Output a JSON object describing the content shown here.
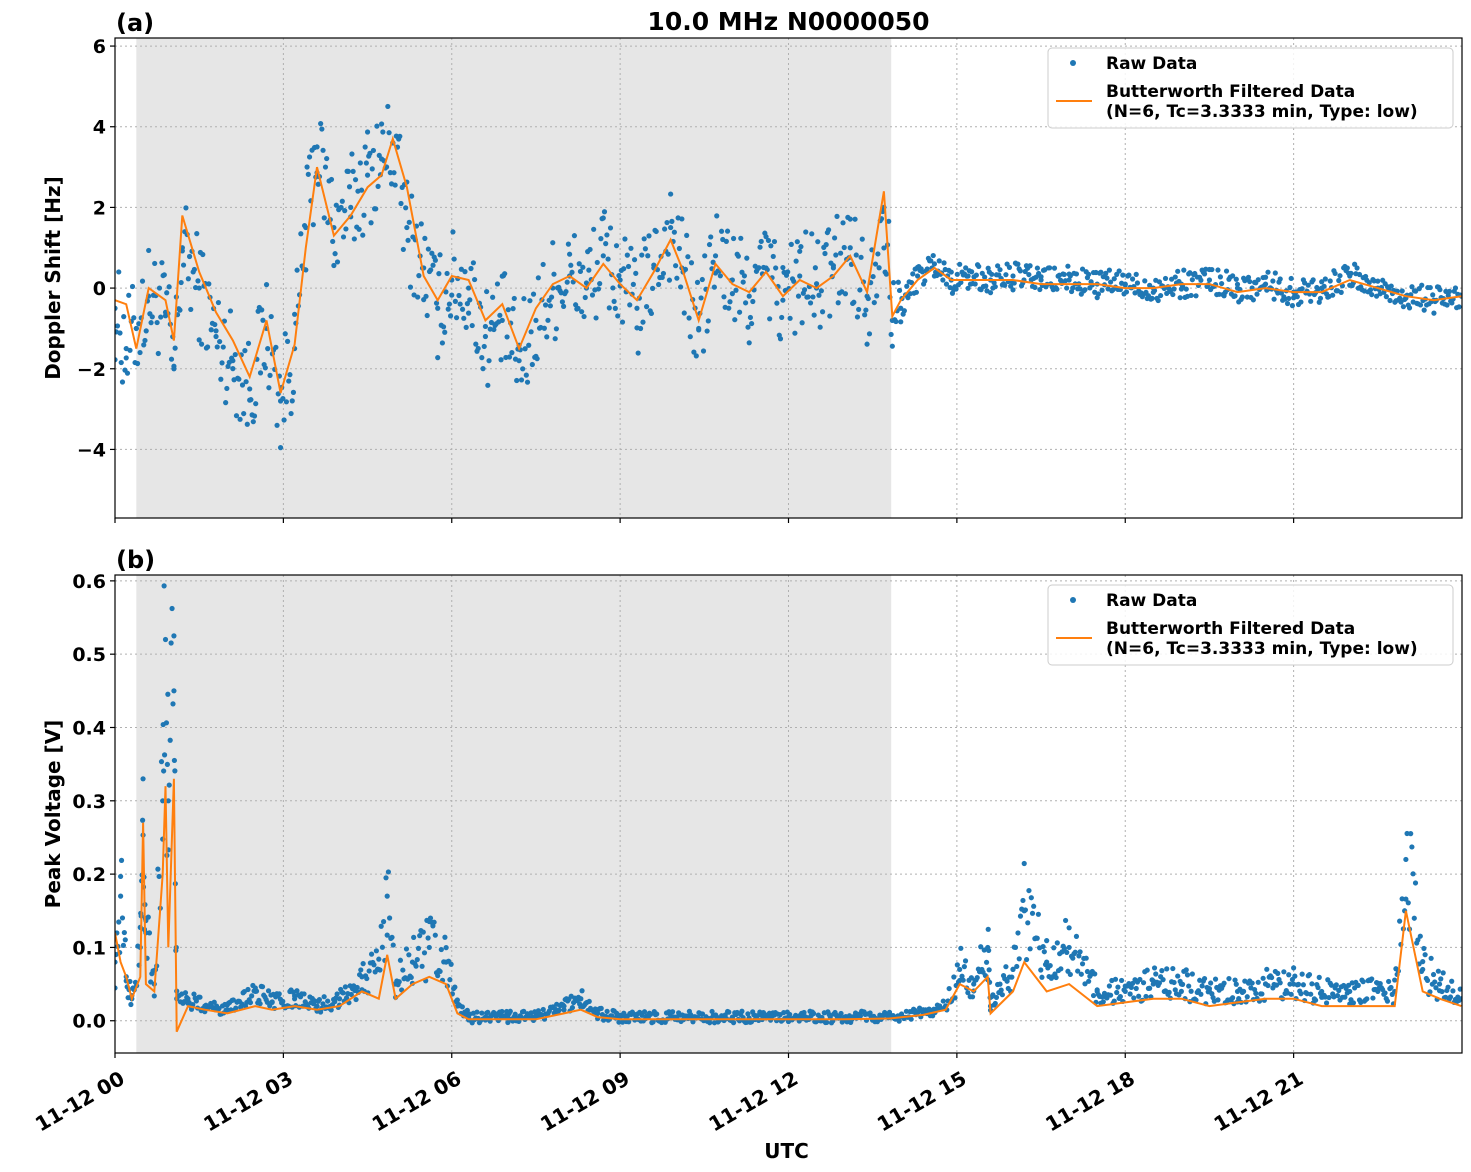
{
  "chart_data": [
    {
      "type": "scatter",
      "panel": "(a)",
      "title": "10.0 MHz N0000050",
      "xlabel": "",
      "ylabel": "Doppler Shift [Hz]",
      "ylim": [
        -5.7,
        6.2
      ],
      "yticks": [
        -4,
        -2,
        0,
        2,
        4,
        6
      ],
      "ytick_labels": [
        "−4",
        "−2",
        "0",
        "2",
        "4",
        "6"
      ],
      "xlim": [
        0,
        24
      ],
      "xticks": [
        0,
        3,
        6,
        9,
        12,
        15,
        18,
        21
      ],
      "shaded_interval": [
        0.38,
        13.83
      ],
      "grid": true,
      "legend_position": "top-right",
      "legend": [
        "Raw Data",
        "Butterworth Filtered Data",
        "(N=6, Tc=3.3333 min, Type: low)"
      ],
      "series": [
        {
          "name": "Raw Data",
          "kind": "points",
          "color": "#1f77b4",
          "x": [
            0.0,
            0.2,
            0.38,
            0.6,
            0.9,
            1.05,
            1.2,
            1.5,
            1.8,
            2.1,
            2.4,
            2.7,
            2.95,
            3.2,
            3.4,
            3.6,
            3.9,
            4.2,
            4.5,
            4.75,
            4.95,
            5.2,
            5.5,
            5.75,
            6.0,
            6.3,
            6.6,
            6.9,
            7.2,
            7.5,
            7.8,
            8.1,
            8.4,
            8.7,
            9.0,
            9.3,
            9.6,
            9.9,
            10.1,
            10.4,
            10.7,
            11.0,
            11.3,
            11.6,
            11.9,
            12.2,
            12.5,
            12.8,
            13.1,
            13.4,
            13.7,
            13.85,
            14.0,
            14.3,
            14.6,
            14.9,
            15.2,
            15.6,
            16.0,
            16.5,
            17.0,
            17.5,
            18.0,
            18.5,
            19.0,
            19.5,
            20.0,
            20.5,
            21.0,
            21.5,
            22.0,
            22.5,
            23.0,
            23.5,
            23.99
          ],
          "y": [
            -0.5,
            -1.5,
            -1.0,
            -0.2,
            -0.6,
            -2.0,
            1.0,
            0.0,
            -1.2,
            -1.8,
            -2.5,
            -1.0,
            -2.8,
            -1.5,
            1.5,
            3.5,
            1.5,
            2.0,
            2.8,
            3.2,
            3.6,
            1.5,
            0.5,
            -0.5,
            0.2,
            0.0,
            -1.2,
            -0.8,
            -1.8,
            -0.8,
            0.0,
            0.3,
            0.0,
            0.8,
            0.2,
            -0.5,
            0.5,
            1.5,
            0.5,
            -1.0,
            0.8,
            0.2,
            -0.2,
            0.5,
            -0.3,
            0.3,
            0.0,
            0.5,
            1.0,
            -0.2,
            2.0,
            -0.8,
            -0.5,
            0.3,
            0.6,
            0.2,
            0.3,
            0.2,
            0.3,
            0.2,
            0.2,
            0.1,
            0.1,
            0.0,
            0.1,
            0.2,
            0.0,
            0.1,
            -0.1,
            0.0,
            0.3,
            0.0,
            -0.2,
            -0.3,
            -0.2
          ]
        },
        {
          "name": "Butterworth Filtered Data",
          "kind": "line",
          "color": "#ff7f0e",
          "x": [
            0.0,
            0.2,
            0.38,
            0.6,
            0.9,
            1.05,
            1.2,
            1.5,
            1.8,
            2.1,
            2.4,
            2.7,
            2.95,
            3.2,
            3.4,
            3.6,
            3.9,
            4.2,
            4.5,
            4.75,
            4.95,
            5.2,
            5.5,
            5.75,
            6.0,
            6.3,
            6.6,
            6.9,
            7.2,
            7.5,
            7.8,
            8.1,
            8.4,
            8.7,
            9.0,
            9.3,
            9.6,
            9.9,
            10.1,
            10.4,
            10.7,
            11.0,
            11.3,
            11.6,
            11.9,
            12.2,
            12.5,
            12.8,
            13.1,
            13.4,
            13.7,
            13.85,
            14.0,
            14.3,
            14.6,
            14.9,
            15.2,
            15.6,
            16.0,
            16.5,
            17.0,
            17.5,
            18.0,
            18.5,
            19.0,
            19.5,
            20.0,
            20.5,
            21.0,
            21.5,
            22.0,
            22.5,
            23.0,
            23.5,
            23.99
          ],
          "y": [
            -0.3,
            -0.4,
            -1.5,
            0.0,
            -0.3,
            -1.3,
            1.8,
            0.4,
            -0.6,
            -1.3,
            -2.2,
            -0.8,
            -2.6,
            -1.4,
            1.0,
            3.0,
            1.3,
            1.8,
            2.5,
            2.8,
            3.7,
            2.5,
            0.3,
            -0.3,
            0.3,
            0.2,
            -0.8,
            -0.4,
            -1.5,
            -0.5,
            0.1,
            0.3,
            0.0,
            0.6,
            0.1,
            -0.3,
            0.4,
            1.2,
            0.5,
            -0.8,
            0.6,
            0.1,
            -0.1,
            0.4,
            -0.2,
            0.2,
            0.0,
            0.3,
            0.8,
            -0.1,
            2.4,
            -0.7,
            -0.3,
            0.2,
            0.5,
            0.2,
            0.2,
            0.2,
            0.2,
            0.1,
            0.1,
            0.1,
            0.0,
            0.0,
            0.1,
            0.1,
            -0.1,
            0.0,
            -0.1,
            -0.1,
            0.2,
            0.0,
            -0.2,
            -0.3,
            -0.2
          ]
        }
      ]
    },
    {
      "type": "scatter",
      "panel": "(b)",
      "title": "",
      "xlabel": "UTC",
      "ylabel": "Peak Voltage [V]",
      "ylim": [
        -0.044,
        0.608
      ],
      "yticks": [
        0.0,
        0.1,
        0.2,
        0.3,
        0.4,
        0.5,
        0.6
      ],
      "ytick_labels": [
        "0.0",
        "0.1",
        "0.2",
        "0.3",
        "0.4",
        "0.5",
        "0.6"
      ],
      "xlim": [
        0,
        24
      ],
      "xticks": [
        0,
        3,
        6,
        9,
        12,
        15,
        18,
        21
      ],
      "xtick_labels": [
        "11-12 00",
        "11-12 03",
        "11-12 06",
        "11-12 09",
        "11-12 12",
        "11-12 15",
        "11-12 18",
        "11-12 21"
      ],
      "shaded_interval": [
        0.38,
        13.83
      ],
      "grid": true,
      "legend_position": "top-right",
      "legend": [
        "Raw Data",
        "Butterworth Filtered Data",
        "(N=6, Tc=3.3333 min, Type: low)"
      ],
      "series": [
        {
          "name": "Raw Data",
          "kind": "points",
          "color": "#1f77b4",
          "x": [
            0.0,
            0.1,
            0.2,
            0.3,
            0.45,
            0.5,
            0.55,
            0.7,
            0.85,
            0.9,
            0.95,
            1.05,
            1.1,
            1.3,
            1.6,
            2.0,
            2.5,
            2.8,
            3.2,
            3.6,
            4.0,
            4.4,
            4.7,
            4.85,
            5.0,
            5.3,
            5.6,
            5.9,
            6.1,
            6.3,
            6.6,
            7.0,
            7.5,
            8.0,
            8.3,
            8.6,
            9.0,
            9.5,
            10.0,
            11.0,
            12.0,
            13.0,
            13.8,
            14.4,
            14.8,
            15.05,
            15.3,
            15.55,
            15.6,
            16.0,
            16.2,
            16.6,
            17.0,
            17.5,
            18.0,
            18.5,
            19.0,
            19.5,
            20.0,
            20.5,
            21.0,
            21.5,
            22.0,
            22.5,
            22.8,
            23.0,
            23.3,
            23.6,
            23.99
          ],
          "y": [
            0.08,
            0.17,
            0.06,
            0.03,
            0.1,
            0.33,
            0.12,
            0.05,
            0.3,
            0.52,
            0.3,
            0.45,
            0.03,
            0.03,
            0.02,
            0.015,
            0.04,
            0.025,
            0.03,
            0.02,
            0.03,
            0.06,
            0.07,
            0.17,
            0.05,
            0.08,
            0.1,
            0.08,
            0.02,
            0.005,
            0.005,
            0.005,
            0.005,
            0.02,
            0.03,
            0.01,
            0.005,
            0.005,
            0.005,
            0.005,
            0.005,
            0.005,
            0.005,
            0.01,
            0.02,
            0.07,
            0.05,
            0.1,
            0.02,
            0.07,
            0.15,
            0.08,
            0.1,
            0.04,
            0.04,
            0.05,
            0.05,
            0.04,
            0.04,
            0.05,
            0.05,
            0.04,
            0.04,
            0.04,
            0.04,
            0.22,
            0.07,
            0.05,
            0.03
          ]
        },
        {
          "name": "Butterworth Filtered Data",
          "kind": "line",
          "color": "#ff7f0e",
          "x": [
            0.0,
            0.1,
            0.2,
            0.3,
            0.45,
            0.5,
            0.55,
            0.7,
            0.85,
            0.9,
            0.95,
            1.05,
            1.1,
            1.3,
            1.6,
            2.0,
            2.5,
            2.8,
            3.2,
            3.6,
            4.0,
            4.4,
            4.7,
            4.85,
            5.0,
            5.3,
            5.6,
            5.9,
            6.1,
            6.3,
            6.6,
            7.0,
            7.5,
            8.0,
            8.3,
            8.6,
            9.0,
            9.5,
            10.0,
            11.0,
            12.0,
            13.0,
            13.8,
            14.4,
            14.8,
            15.05,
            15.3,
            15.55,
            15.6,
            16.0,
            16.2,
            16.6,
            17.0,
            17.5,
            18.0,
            18.5,
            19.0,
            19.5,
            20.0,
            20.5,
            21.0,
            21.5,
            22.0,
            22.5,
            22.8,
            23.0,
            23.3,
            23.6,
            23.99
          ],
          "y": [
            0.12,
            0.08,
            0.06,
            0.03,
            0.06,
            0.27,
            0.05,
            0.04,
            0.2,
            0.32,
            0.1,
            0.33,
            -0.015,
            0.02,
            0.015,
            0.01,
            0.02,
            0.015,
            0.02,
            0.015,
            0.02,
            0.04,
            0.03,
            0.09,
            0.03,
            0.05,
            0.06,
            0.05,
            0.01,
            0.002,
            0.002,
            0.002,
            0.002,
            0.01,
            0.015,
            0.005,
            0.002,
            0.002,
            0.002,
            0.002,
            0.002,
            0.002,
            0.003,
            0.008,
            0.015,
            0.05,
            0.04,
            0.06,
            0.01,
            0.04,
            0.08,
            0.04,
            0.05,
            0.02,
            0.025,
            0.03,
            0.03,
            0.02,
            0.025,
            0.03,
            0.03,
            0.02,
            0.02,
            0.02,
            0.02,
            0.15,
            0.04,
            0.03,
            0.02
          ]
        }
      ]
    }
  ]
}
